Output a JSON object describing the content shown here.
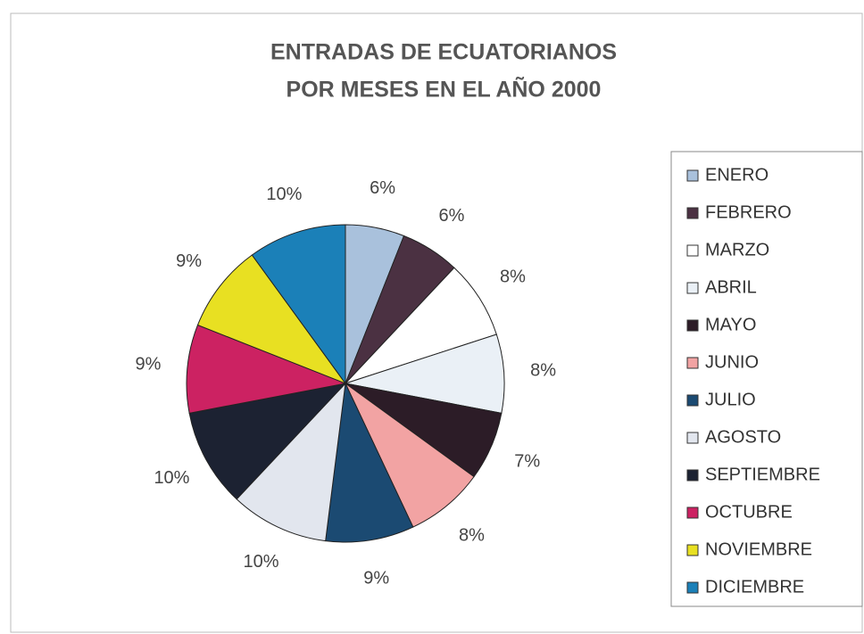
{
  "chart_data": {
    "type": "pie",
    "title": [
      "ENTRADAS DE ECUATORIANOS",
      "POR MESES EN EL AÑO 2000"
    ],
    "categories": [
      "ENERO",
      "FEBRERO",
      "MARZO",
      "ABRIL",
      "MAYO",
      "JUNIO",
      "JULIO",
      "AGOSTO",
      "SEPTIEMBRE",
      "OCTUBRE",
      "NOVIEMBRE",
      "DICIEMBRE"
    ],
    "values": [
      6,
      6,
      8,
      8,
      7,
      8,
      9,
      10,
      10,
      9,
      9,
      10
    ],
    "value_labels": [
      "6%",
      "6%",
      "8%",
      "8%",
      "7%",
      "8%",
      "9%",
      "10%",
      "10%",
      "9%",
      "9%",
      "10%"
    ],
    "colors": [
      "#a9c1dc",
      "#4b3142",
      "#ffffff",
      "#eaf0f6",
      "#2c1c27",
      "#f2a3a3",
      "#1b4a72",
      "#e2e6ee",
      "#1c2232",
      "#cc2262",
      "#e8e022",
      "#1b80b8"
    ],
    "legend": "right"
  }
}
